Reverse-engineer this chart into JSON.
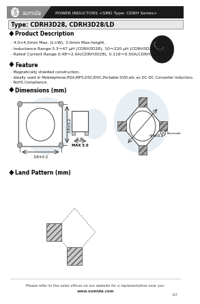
{
  "header_bg": "#1a1a1a",
  "header_logo_bg": "#555555",
  "header_title": "POWER INDUCTORS <SMD Type: CDRH Series>",
  "type_label": "Type: CDRH3D28, CDRH3D28/LD",
  "section1_title": "Product Description",
  "desc_lines": [
    "· 4.0×4.0mm Max. (L×W), 3.0mm Max.height.",
    "· Inductance Range:3.3～47 μH (CDRH3D28), 10～220 μH (CDRH3D28/LD).",
    "· Rated Current Range 0.48～2.0A(CDRH3D28), 0.116～0.50A(CDRH3D28/LD)."
  ],
  "section2_title": "Feature",
  "feature_lines": [
    "· Magnetically shielded construction.",
    "· Ideally used in Mobilephone,PDA,MP3,DSC/DVC,Portable DVD,etc as DC-DC Converter Inductors.",
    "· RoHS Compliance."
  ],
  "section3_title": "Dimensions (mm)",
  "section4_title": "Land Pattern (mm)",
  "footer_text": "Please refer to the sales offices on our website for a representative near you",
  "footer_url": "www.sumida.com",
  "footer_page": "1/2",
  "bg_color": "#ffffff",
  "diamond_color": "#000000",
  "dim_label_w": "3.8±0.2",
  "dim_label_h": "3.8±0.2",
  "dim_label_side_w": "(2.8)",
  "dim_label_side_h": "MAX 3.0",
  "dim_label_diag": "4.4±0.2",
  "watermark_color": "#ccdde8"
}
